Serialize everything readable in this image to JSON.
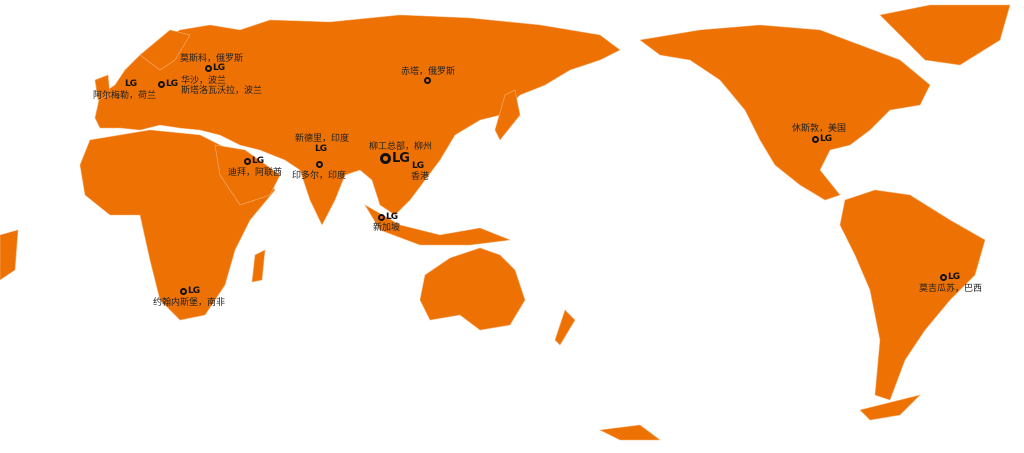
{
  "map": {
    "land_color": "#ee7203",
    "marker_icons": [
      "gear-icon",
      "liugong-logo-icon"
    ],
    "locations": [
      {
        "label": "莫斯科，俄罗斯",
        "markers": [
          "gear",
          "logo"
        ]
      },
      {
        "label": "华沙，波兰",
        "markers": [
          "gear",
          "logo"
        ]
      },
      {
        "label": "斯塔洛瓦沃拉，波兰",
        "markers": []
      },
      {
        "label": "阿尔梅勒，荷兰",
        "markers": [
          "logo"
        ]
      },
      {
        "label": "赤塔，俄罗斯",
        "markers": [
          "gear"
        ]
      },
      {
        "label": "新德里，印度",
        "markers": [
          "logo"
        ]
      },
      {
        "label": "印多尔，印度",
        "markers": [
          "gear"
        ]
      },
      {
        "label": "迪拜，阿联酋",
        "markers": [
          "gear",
          "logo"
        ]
      },
      {
        "label": "柳工总部，柳州",
        "markers": [
          "gear",
          "logo"
        ]
      },
      {
        "label": "香港",
        "markers": [
          "logo"
        ]
      },
      {
        "label": "新加坡",
        "markers": [
          "gear",
          "logo"
        ]
      },
      {
        "label": "约翰内斯堡，南非",
        "markers": [
          "gear",
          "logo"
        ]
      },
      {
        "label": "休斯敦，美国",
        "markers": [
          "gear",
          "logo"
        ]
      },
      {
        "label": "莫吉瓜苏，巴西",
        "markers": [
          "gear",
          "logo"
        ]
      }
    ],
    "logo_text": "LG"
  }
}
